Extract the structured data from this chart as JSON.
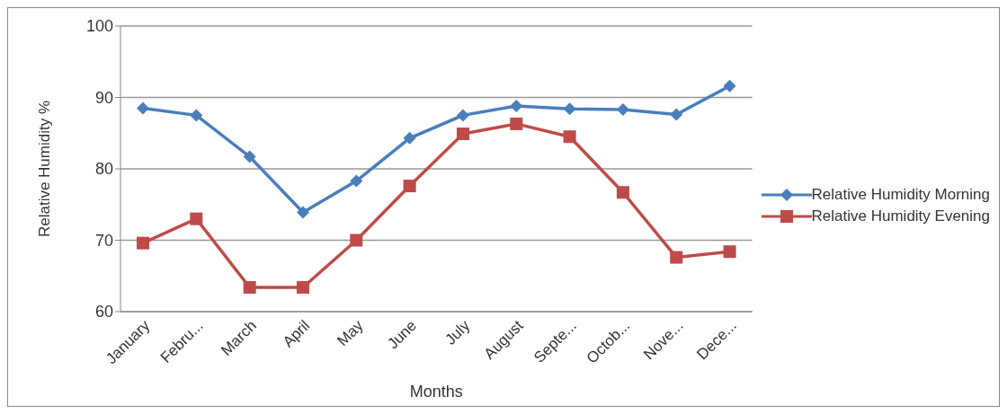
{
  "chart_data": {
    "type": "line",
    "xlabel": "Months",
    "ylabel": "Relative Humidity %",
    "categories": [
      "January",
      "Febru...",
      "March",
      "April",
      "May",
      "June",
      "July",
      "August",
      "Septe...",
      "Octob...",
      "Nove...",
      "Dece..."
    ],
    "series": [
      {
        "name": "Relative Humidity Morning",
        "color": "#4a7ebb",
        "marker": "diamond",
        "values": [
          88.5,
          87.5,
          81.7,
          73.9,
          78.3,
          84.3,
          87.5,
          88.8,
          88.4,
          88.3,
          87.6,
          91.6
        ]
      },
      {
        "name": "Relative Humidity Evening",
        "color": "#be4b48",
        "marker": "square",
        "values": [
          69.6,
          73,
          63.4,
          63.4,
          70,
          77.6,
          84.9,
          86.3,
          84.5,
          76.7,
          67.6,
          68.4
        ]
      }
    ],
    "ylim": [
      60,
      100
    ],
    "yticks": [
      60,
      70,
      80,
      90,
      100
    ],
    "grid": "y",
    "legend": "right",
    "line_style": "solid"
  }
}
